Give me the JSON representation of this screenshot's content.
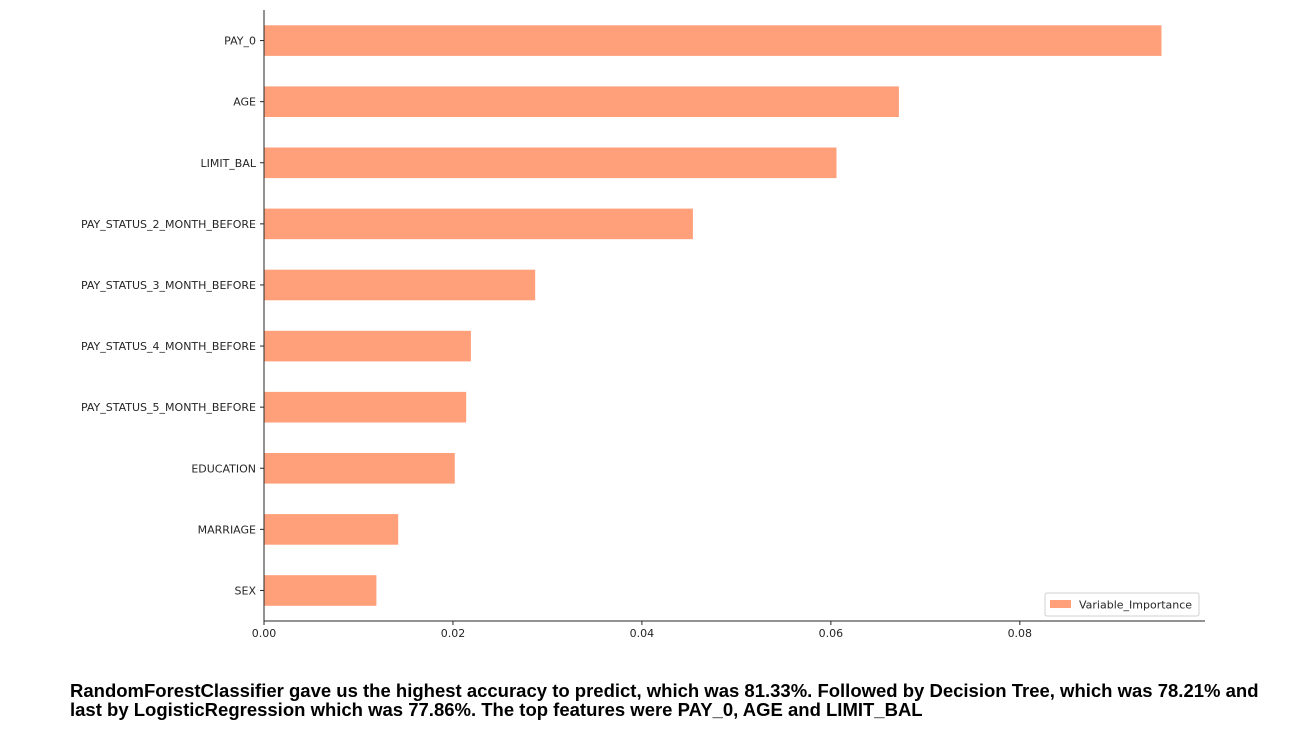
{
  "chart_data": {
    "type": "bar",
    "orientation": "horizontal",
    "categories": [
      "PAY_0",
      "AGE",
      "LIMIT_BAL",
      "PAY_STATUS_2_MONTH_BEFORE",
      "PAY_STATUS_3_MONTH_BEFORE",
      "PAY_STATUS_4_MONTH_BEFORE",
      "PAY_STATUS_5_MONTH_BEFORE",
      "EDUCATION",
      "MARRIAGE",
      "SEX"
    ],
    "series": [
      {
        "name": "Variable_Importance",
        "values": [
          0.095,
          0.0672,
          0.0606,
          0.0454,
          0.0287,
          0.0219,
          0.0214,
          0.0202,
          0.0142,
          0.0119
        ],
        "color": "#ffa07a"
      }
    ],
    "x_ticks": [
      "0.00",
      "0.02",
      "0.04",
      "0.06",
      "0.08"
    ],
    "x_tick_values": [
      0,
      0.02,
      0.04,
      0.06,
      0.08
    ],
    "xlim": [
      0,
      0.0996
    ],
    "grid": false,
    "legend_position": "bottom-right",
    "title": "",
    "xlabel": "",
    "ylabel": ""
  },
  "caption": "RandomForestClassifier gave us the highest accuracy to predict, which was 81.33%. Followed by Decision Tree, which was 78.21% and last by LogisticRegression which was 77.86%. The top features were PAY_0, AGE and LIMIT_BAL"
}
